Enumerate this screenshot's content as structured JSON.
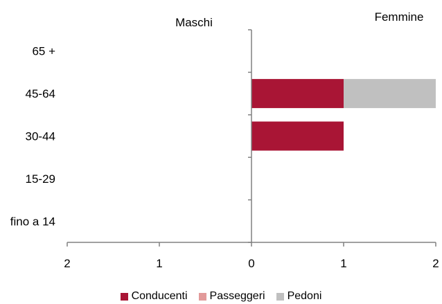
{
  "chart_data": {
    "type": "bar",
    "orientation": "horizontal",
    "stacked": true,
    "panel_labels": {
      "left": "Maschi",
      "right": "Femmine"
    },
    "categories": [
      "65 +",
      "45-64",
      "30-44",
      "15-29",
      "fino a 14"
    ],
    "x_tick_labels": [
      "2",
      "1",
      "0",
      "1",
      "2"
    ],
    "xlim": [
      -2,
      2
    ],
    "series": [
      {
        "name": "Conducenti",
        "color": "#A91535",
        "values": [
          0,
          1,
          1,
          0,
          0
        ]
      },
      {
        "name": "Passeggeri",
        "color": "#E29A9A",
        "values": [
          0,
          0,
          0,
          0,
          0
        ]
      },
      {
        "name": "Pedoni",
        "color": "#C0C0C0",
        "values": [
          0,
          1,
          0,
          0,
          0
        ]
      }
    ],
    "grid": false,
    "legend_position": "bottom"
  }
}
